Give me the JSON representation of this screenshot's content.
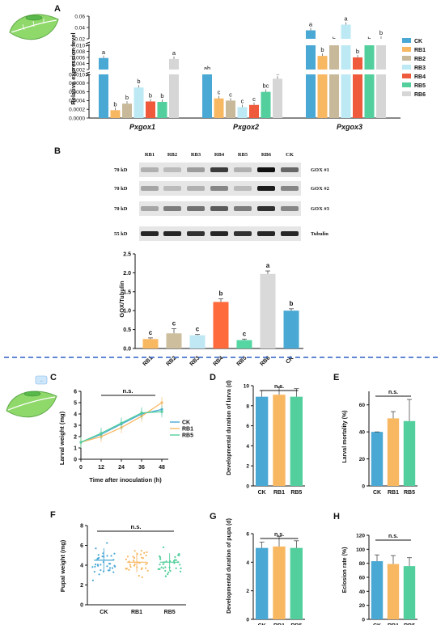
{
  "panels": {
    "A": {
      "label": "A",
      "ylabel": "Relative expression level",
      "genes": [
        "Pxgox1",
        "Pxgox2",
        "Pxgox3"
      ],
      "legend": [
        "CK",
        "RB1",
        "RB2",
        "RB3",
        "RB4",
        "RB5",
        "RB6"
      ],
      "yticks_low": [
        "0.0000",
        "0.0002",
        "0.0004",
        "0.0006",
        "0.0008",
        "0.0010"
      ],
      "yticks_mid": [
        "0.002",
        "0.004",
        "0.006",
        "0.008",
        "0.010"
      ],
      "yticks_high": [
        "0.02",
        "0.04",
        "0.06"
      ]
    },
    "B": {
      "label": "B",
      "lanes": [
        "RB1",
        "RB2",
        "RB3",
        "RB4",
        "RB5",
        "RB6",
        "CK"
      ],
      "blots": [
        {
          "kd": "70 kD",
          "name": "GOX #1"
        },
        {
          "kd": "70 kD",
          "name": "GOX #2"
        },
        {
          "kd": "70 kD",
          "name": "GOX #3"
        },
        {
          "kd": "55 kD",
          "name": "Tubulin"
        }
      ],
      "ylabel": "GOX/Tubulin",
      "yticks": [
        "0.0",
        "0.5",
        "1.0",
        "1.5",
        "2.0",
        "2.5"
      ]
    },
    "C": {
      "label": "C",
      "ylabel": "Larval weight (mg)",
      "xlabel": "Time after inoculation (h)",
      "xticks": [
        "0",
        "12",
        "24",
        "36",
        "48"
      ],
      "yticks": [
        "0",
        "1",
        "2",
        "3",
        "4",
        "5",
        "6"
      ],
      "legend": [
        "CK",
        "RB1",
        "RB5"
      ],
      "ns": "n.s."
    },
    "D": {
      "label": "D",
      "ylabel": "Developmental duration of larva (d)",
      "yticks": [
        "0",
        "2",
        "4",
        "6",
        "8",
        "10"
      ],
      "ns": "n.s."
    },
    "E": {
      "label": "E",
      "ylabel": "Larval mortality (%)",
      "yticks": [
        "0",
        "20",
        "40",
        "60"
      ],
      "ns": "n.s."
    },
    "F": {
      "label": "F",
      "ylabel": "Pupal weight (mg)",
      "yticks": [
        "0",
        "2",
        "4",
        "6",
        "8"
      ],
      "ns": "n.s."
    },
    "G": {
      "label": "G",
      "ylabel": "Developmental duration of pupa (d)",
      "yticks": [
        "0",
        "2",
        "4",
        "6"
      ],
      "ns": "n.s."
    },
    "H": {
      "label": "H",
      "ylabel": "Eclosion rate (%)",
      "yticks": [
        "0",
        "20",
        "40",
        "60",
        "80",
        "100",
        "120"
      ],
      "ns": "n.s."
    },
    "bottom_groups": [
      "CK",
      "RB1",
      "RB5"
    ]
  },
  "colors": {
    "CK": "#4aa8d4",
    "RB1": "#f8b862",
    "RB2": "#c7b99a",
    "RB3": "#bde9f5",
    "RB4": "#f05a3c",
    "RB5": "#52cf9c",
    "RB6": "#d6d6d6",
    "B_RB1": "#f8b862",
    "B_RB2": "#cdbf9e",
    "B_RB3": "#bfe8f4",
    "B_RB4": "#ff6a3d",
    "B_RB5": "#56d6a2",
    "B_RB6": "#d9d9d9",
    "B_CK": "#4aa8d4",
    "divider": "#2f5fc4"
  },
  "chart_data": [
    {
      "type": "bar",
      "panel": "A",
      "categories": [
        "Pxgox1",
        "Pxgox2",
        "Pxgox3"
      ],
      "ylabel": "Relative expression level",
      "axis": "broken",
      "series": [
        {
          "name": "CK",
          "values": [
            0.0058,
            0.001,
            0.035
          ],
          "sig": [
            "a",
            "ab",
            "a"
          ]
        },
        {
          "name": "RB1",
          "values": [
            0.00018,
            0.00045,
            0.0065
          ],
          "sig": [
            "b",
            "c",
            "b"
          ]
        },
        {
          "name": "RB2",
          "values": [
            0.00033,
            0.0004,
            0.01
          ],
          "sig": [
            "b",
            "c",
            "b"
          ]
        },
        {
          "name": "RB3",
          "values": [
            0.0007,
            0.00025,
            0.045
          ],
          "sig": [
            "b",
            "c",
            "a"
          ]
        },
        {
          "name": "RB4",
          "values": [
            0.00038,
            0.0003,
            0.006
          ],
          "sig": [
            "b",
            "c",
            "b"
          ]
        },
        {
          "name": "RB5",
          "values": [
            0.00037,
            0.0006,
            0.01
          ],
          "sig": [
            "b",
            "bc",
            "b"
          ]
        },
        {
          "name": "RB6",
          "values": [
            0.0055,
            0.0009,
            0.012
          ],
          "sig": [
            "a",
            "a",
            "b"
          ]
        }
      ]
    },
    {
      "type": "bar",
      "panel": "B",
      "categories": [
        "RB1",
        "RB2",
        "RB3",
        "RB4",
        "RB5",
        "RB6",
        "CK"
      ],
      "values": [
        0.25,
        0.4,
        0.35,
        1.23,
        0.22,
        1.97,
        1.0
      ],
      "errors": [
        0.03,
        0.12,
        0.02,
        0.08,
        0.03,
        0.08,
        0.05
      ],
      "sig": [
        "c",
        "c",
        "c",
        "b",
        "c",
        "a",
        "b"
      ],
      "ylabel": "GOX/Tubulin",
      "ylim": [
        0,
        2.5
      ]
    },
    {
      "type": "line",
      "panel": "C",
      "x": [
        0,
        12,
        24,
        36,
        48
      ],
      "series": [
        {
          "name": "CK",
          "values": [
            1.5,
            2.2,
            3.1,
            4.0,
            4.4
          ]
        },
        {
          "name": "RB1",
          "values": [
            1.5,
            2.0,
            2.8,
            3.8,
            5.0
          ]
        },
        {
          "name": "RB5",
          "values": [
            1.5,
            2.3,
            3.2,
            4.1,
            4.2
          ]
        }
      ],
      "xlabel": "Time after inoculation (h)",
      "ylabel": "Larval weight (mg)",
      "ylim": [
        0,
        6
      ]
    },
    {
      "type": "bar",
      "panel": "D",
      "categories": [
        "CK",
        "RB1",
        "RB5"
      ],
      "values": [
        8.9,
        9.1,
        8.9
      ],
      "errors": [
        0.6,
        0.8,
        0.8
      ],
      "ylim": [
        0,
        10
      ]
    },
    {
      "type": "bar",
      "panel": "E",
      "categories": [
        "CK",
        "RB1",
        "RB5"
      ],
      "values": [
        40,
        50,
        48
      ],
      "errors": [
        0,
        5,
        16
      ],
      "ylim": [
        0,
        70
      ]
    },
    {
      "type": "scatter",
      "panel": "F",
      "categories": [
        "CK",
        "RB1",
        "RB5"
      ],
      "means": [
        4.5,
        4.3,
        4.3
      ],
      "sd": [
        1.2,
        1.0,
        0.9
      ],
      "ylim": [
        0,
        8
      ]
    },
    {
      "type": "bar",
      "panel": "G",
      "categories": [
        "CK",
        "RB1",
        "RB5"
      ],
      "values": [
        5.0,
        5.1,
        5.0
      ],
      "errors": [
        0.4,
        0.7,
        0.5
      ],
      "ylim": [
        0,
        6
      ]
    },
    {
      "type": "bar",
      "panel": "H",
      "categories": [
        "CK",
        "RB1",
        "RB5"
      ],
      "values": [
        83,
        79,
        76
      ],
      "errors": [
        9,
        12,
        12
      ],
      "ylim": [
        0,
        120
      ]
    }
  ]
}
